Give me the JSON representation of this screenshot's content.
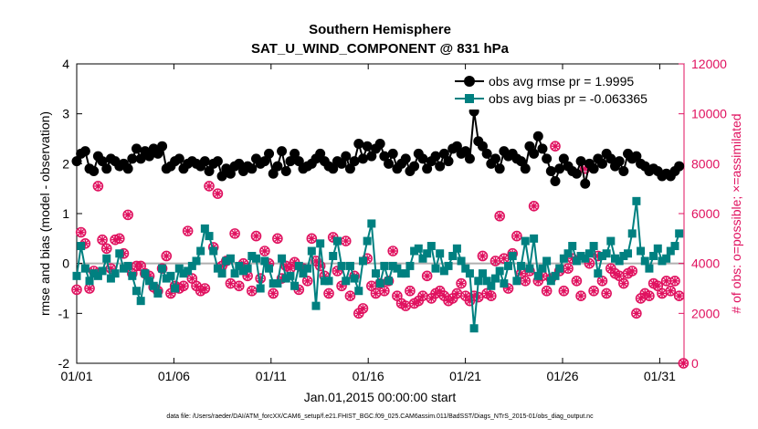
{
  "chart_data": {
    "type": "line",
    "title": "Southern Hemisphere",
    "subtitle": "SAT_U_WIND_COMPONENT @ 831 hPa",
    "xlabel": "Jan.01,2015 00:00:00 start",
    "ylabel_left": "rmse and bias (model - observation)",
    "ylabel_right": "# of obs: o=possible; ×=assimilated",
    "footnote": "data file: /Users/raeder/DAI/ATM_forcXX/CAM6_setup/f.e21.FHIST_BGC.f09_025.CAM6assim.011/BadSST/Diags_NTrS_2015-01/obs_diag_output.nc",
    "xlim": [
      0,
      31.25
    ],
    "ylim_left": [
      -2,
      4
    ],
    "ylim_right": [
      0,
      12000
    ],
    "x_ticks": [
      {
        "x": 0,
        "label": "01/01"
      },
      {
        "x": 5,
        "label": "01/06"
      },
      {
        "x": 10,
        "label": "01/11"
      },
      {
        "x": 15,
        "label": "01/16"
      },
      {
        "x": 20,
        "label": "01/21"
      },
      {
        "x": 25,
        "label": "01/26"
      },
      {
        "x": 30,
        "label": "01/31"
      }
    ],
    "y_left_ticks": [
      -2,
      -1,
      0,
      1,
      2,
      3,
      4
    ],
    "y_right_ticks": [
      0,
      2000,
      4000,
      6000,
      8000,
      10000,
      12000
    ],
    "zero_line": 0,
    "series": [
      {
        "name": "obs avg rmse pr = 1.9995",
        "axis": "left",
        "color": "#000000",
        "marker": "circle",
        "values": [
          2.05,
          2.2,
          2.25,
          1.9,
          1.85,
          2.15,
          2.05,
          1.9,
          2.1,
          2.05,
          1.95,
          2.0,
          1.9,
          2.1,
          2.3,
          2.1,
          2.25,
          2.15,
          2.3,
          2.2,
          2.35,
          1.9,
          1.95,
          2.05,
          2.1,
          1.9,
          2.0,
          2.05,
          2.0,
          1.95,
          2.05,
          1.85,
          2.0,
          2.05,
          1.75,
          1.9,
          1.8,
          1.95,
          2.0,
          1.85,
          1.95,
          1.9,
          2.1,
          2.0,
          2.05,
          2.2,
          1.8,
          1.95,
          2.25,
          1.85,
          2.05,
          2.2,
          2.05,
          1.9,
          1.95,
          2.0,
          2.1,
          2.2,
          2.05,
          1.95,
          1.9,
          2.05,
          2.0,
          2.15,
          1.9,
          2.05,
          2.4,
          2.1,
          2.35,
          2.15,
          2.3,
          2.4,
          2.15,
          2.0,
          2.2,
          1.9,
          2.0,
          2.1,
          1.85,
          1.95,
          2.2,
          2.1,
          1.9,
          2.05,
          2.15,
          1.95,
          2.2,
          2.05,
          2.3,
          2.35,
          2.2,
          2.25,
          2.1,
          3.05,
          2.45,
          2.35,
          2.2,
          2.0,
          2.1,
          1.9,
          2.25,
          2.15,
          2.2,
          2.1,
          2.05,
          1.9,
          2.35,
          2.2,
          2.55,
          2.3,
          2.1,
          1.85,
          1.65,
          1.9,
          2.1,
          1.95,
          1.85,
          1.8,
          2.05,
          1.6,
          2.0,
          1.9,
          2.1,
          2.0,
          2.2,
          2.1,
          1.95,
          2.05,
          1.85,
          2.2,
          2.1,
          2.15,
          2.0,
          1.95,
          1.85,
          1.9,
          1.85,
          1.75,
          1.8,
          1.75,
          1.85,
          1.95
        ]
      },
      {
        "name": "obs avg bias pr = -0.063365",
        "axis": "left",
        "color": "#008080",
        "marker": "square",
        "values": [
          -0.25,
          0.35,
          -0.1,
          -0.35,
          -0.2,
          -0.25,
          -0.15,
          0.1,
          -0.3,
          -0.2,
          0.2,
          -0.1,
          -0.05,
          -0.25,
          -0.55,
          -0.75,
          -0.2,
          -0.35,
          -0.45,
          -0.6,
          -0.1,
          -0.3,
          -0.25,
          -0.5,
          -0.1,
          -0.2,
          -0.15,
          -0.05,
          0.05,
          0.25,
          0.7,
          0.55,
          0.25,
          -0.1,
          -0.2,
          0.05,
          0.1,
          -0.2,
          -0.05,
          -0.15,
          -0.1,
          0.15,
          0.1,
          -0.5,
          0.05,
          -0.1,
          -0.4,
          -0.4,
          0.1,
          -0.3,
          -0.25,
          -0.45,
          -0.05,
          -0.2,
          -0.1,
          0.25,
          -0.85,
          0.4,
          -0.35,
          -0.35,
          0.15,
          0.45,
          -0.05,
          -0.35,
          -0.05,
          -0.3,
          -0.55,
          0.05,
          0.45,
          0.8,
          -0.2,
          -0.4,
          -0.05,
          -0.35,
          -0.05,
          -0.1,
          -0.2,
          -0.2,
          -0.05,
          0.25,
          0.3,
          0.1,
          0.2,
          0.35,
          -0.1,
          0.2,
          -0.15,
          -0.05,
          0.15,
          0.3,
          0.05,
          -0.1,
          -0.2,
          -1.3,
          -0.35,
          -0.2,
          -0.35,
          -0.45,
          -0.3,
          -0.15,
          -0.4,
          -0.05,
          0.15,
          -0.35,
          -0.05,
          0.45,
          -0.1,
          0.5,
          -0.25,
          -0.1,
          0.05,
          -0.35,
          -0.25,
          -0.1,
          0.1,
          0.2,
          0.35,
          0.05,
          0.15,
          0.1,
          0.2,
          0.35,
          -0.2,
          0.15,
          0.2,
          0.45,
          0.1,
          0.05,
          0.15,
          0.2,
          0.6,
          1.25,
          0.25,
          0.05,
          -0.1,
          0.15,
          0.3,
          0.05,
          0.1,
          0.25,
          0.35,
          0.6
        ]
      },
      {
        "name": "# obs possible",
        "axis": "right",
        "color": "#E0115F",
        "marker": "circle-open",
        "values": [
          2950,
          5250,
          4800,
          3000,
          3700,
          7100,
          4950,
          4600,
          3800,
          4950,
          5000,
          4400,
          5950,
          3600,
          3900,
          3900,
          3600,
          3500,
          3050,
          2900,
          3800,
          4300,
          2800,
          3100,
          3000,
          3100,
          5300,
          3400,
          3100,
          2900,
          3000,
          7100,
          4650,
          6800,
          3900,
          4100,
          3200,
          5200,
          3100,
          4000,
          3500,
          2900,
          5100,
          3400,
          4500,
          4000,
          2800,
          5000,
          3400,
          3900,
          3800,
          4050,
          2950,
          3800,
          3300,
          5000,
          4100,
          3900,
          3500,
          2800,
          5050,
          3700,
          3100,
          4900,
          2700,
          3500,
          2000,
          2200,
          4200,
          3100,
          2800,
          3200,
          2900,
          3300,
          4500,
          2700,
          2400,
          2300,
          2900,
          2400,
          2500,
          2700,
          3500,
          2600,
          2800,
          2900,
          2700,
          2500,
          2600,
          2800,
          3200,
          2700,
          2500,
          2700,
          2650,
          4300,
          2800,
          2700,
          4100,
          5900,
          4200,
          3000,
          4400,
          5100,
          3600,
          3300,
          3700,
          6300,
          3300,
          3500,
          2900,
          3400,
          8700,
          3700,
          2900,
          3800,
          4200,
          3300,
          2700,
          7800,
          4000,
          2900,
          4300,
          3300,
          2800,
          3800,
          3600,
          3500,
          3200,
          3600,
          3700,
          2000,
          2600,
          2800,
          2700,
          3200,
          3100,
          2800,
          3300,
          2900,
          3300,
          2700,
          0
        ]
      },
      {
        "name": "# obs assimilated",
        "axis": "right",
        "color": "#E0115F",
        "marker": "cross",
        "values": [
          2950,
          5250,
          4800,
          3000,
          3700,
          7100,
          4950,
          4600,
          3800,
          4950,
          5000,
          4400,
          5950,
          3600,
          3900,
          3900,
          3600,
          3500,
          3050,
          2900,
          3800,
          4300,
          2800,
          3100,
          3000,
          3100,
          5300,
          3400,
          3100,
          2900,
          3000,
          7100,
          4650,
          6800,
          3900,
          4100,
          3200,
          5200,
          3100,
          4000,
          3500,
          2900,
          5100,
          3400,
          4500,
          4000,
          2800,
          5000,
          3400,
          3900,
          3800,
          4050,
          2950,
          3800,
          3300,
          5000,
          4100,
          3900,
          3500,
          2800,
          5050,
          3700,
          3100,
          4900,
          2700,
          3500,
          2000,
          2200,
          4200,
          3100,
          2800,
          3200,
          2900,
          3300,
          4500,
          2700,
          2400,
          2300,
          2900,
          2400,
          2500,
          2700,
          3500,
          2600,
          2800,
          2900,
          2700,
          2500,
          2600,
          2800,
          3200,
          2700,
          2500,
          2700,
          2650,
          4300,
          2800,
          2700,
          4100,
          5900,
          4200,
          3000,
          4400,
          5100,
          3600,
          3300,
          3700,
          6300,
          3300,
          3500,
          2900,
          3400,
          8700,
          3700,
          2900,
          3800,
          4200,
          3300,
          2700,
          7800,
          4000,
          2900,
          4300,
          3300,
          2800,
          3800,
          3600,
          3500,
          3200,
          3600,
          3700,
          2000,
          2600,
          2800,
          2700,
          3200,
          3100,
          2800,
          3300,
          2900,
          3300,
          2700,
          0
        ]
      }
    ],
    "legend": {
      "location": "top-right",
      "entries": [
        "obs avg rmse pr = 1.9995",
        "obs avg bias pr = -0.063365"
      ]
    },
    "colors": {
      "rmse": "#000000",
      "bias": "#008080",
      "obs_count": "#E0115F",
      "zero_line": "#b0b0b0"
    }
  }
}
